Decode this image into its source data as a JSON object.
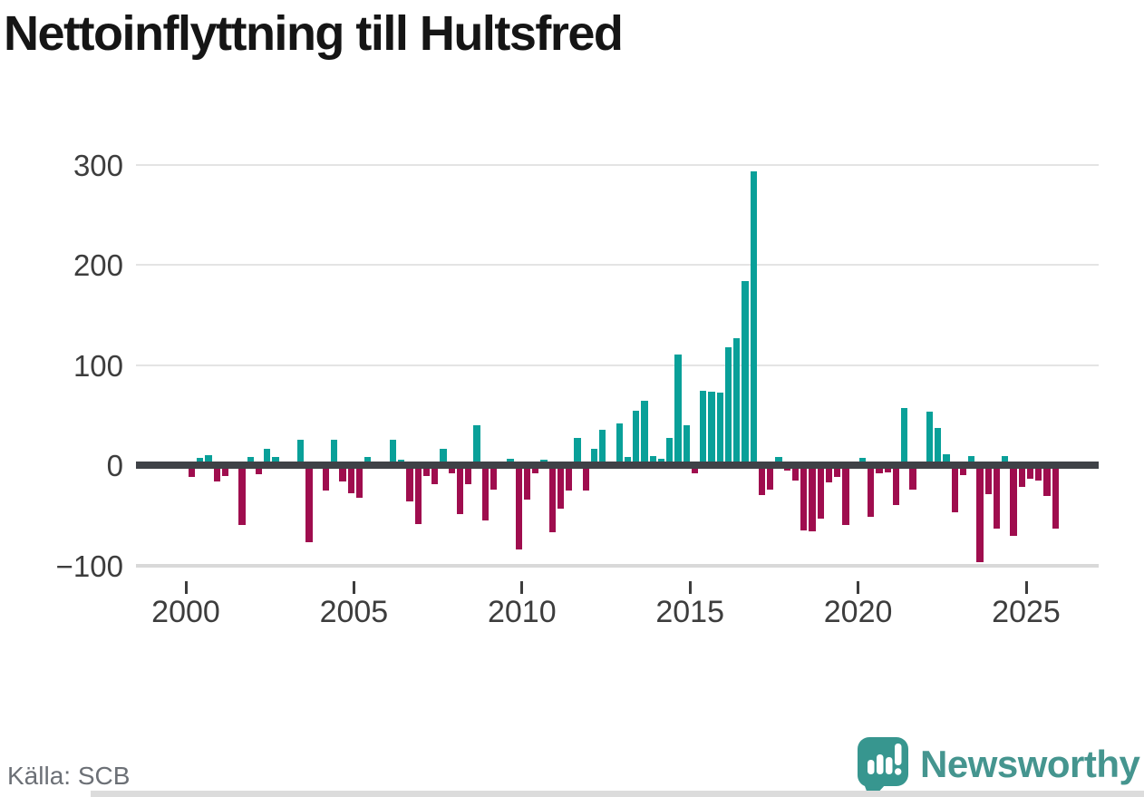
{
  "page": {
    "title": "Nettoinflyttning till Hultsfred",
    "source": "Källa: SCB"
  },
  "branding": {
    "name": "Newsworthy",
    "icon": "newsworthy-speech-bubble-bar-chart-icon",
    "brand_color": "#45958f"
  },
  "colors": {
    "positive_bar": "#09a099",
    "negative_bar": "#9f0d4e",
    "axis_line": "#3f4247",
    "gridline": "#e4e4e4",
    "tick_text": "#3d3d3d",
    "source_text": "#6c7076",
    "title_text": "#151515",
    "background": "#ffffff"
  },
  "chart_data": {
    "type": "bar",
    "title": "Nettoinflyttning till Hultsfred",
    "frequency": "quarterly",
    "start_period": "2000 Q1",
    "end_period": "2025 Q4",
    "values": [
      -12,
      7,
      10,
      -16,
      -11,
      0,
      -60,
      8,
      -9,
      16,
      8,
      0,
      0,
      25,
      -77,
      0,
      -25,
      25,
      -16,
      -28,
      -33,
      8,
      0,
      0,
      25,
      5,
      -36,
      -59,
      -11,
      -19,
      16,
      -8,
      -49,
      -19,
      40,
      -55,
      -24,
      0,
      6,
      -84,
      -34,
      -8,
      5,
      -67,
      -43,
      -25,
      27,
      -25,
      16,
      35,
      0,
      42,
      8,
      54,
      64,
      9,
      6,
      27,
      110,
      40,
      -8,
      74,
      73,
      72,
      118,
      127,
      184,
      293,
      -30,
      -24,
      8,
      -5,
      -15,
      -65,
      -66,
      -53,
      -17,
      -12,
      -60,
      0,
      7,
      -52,
      -8,
      -7,
      -40,
      57,
      -24,
      3,
      53,
      37,
      11,
      -47,
      -10,
      9,
      -97,
      -29,
      -63,
      9,
      -71,
      -22,
      -14,
      -15,
      -31,
      -63
    ],
    "yticks": [
      300,
      200,
      100,
      0,
      -100
    ],
    "ytick_labels": [
      "300",
      "200",
      "100",
      "0",
      "−100"
    ],
    "xticks": [
      2000,
      2005,
      2010,
      2015,
      2020,
      2025
    ],
    "ylim": [
      -110,
      310
    ],
    "grid": "horizontal",
    "legend": "none",
    "positive_color": "#09a099",
    "negative_color": "#9f0d4e"
  }
}
